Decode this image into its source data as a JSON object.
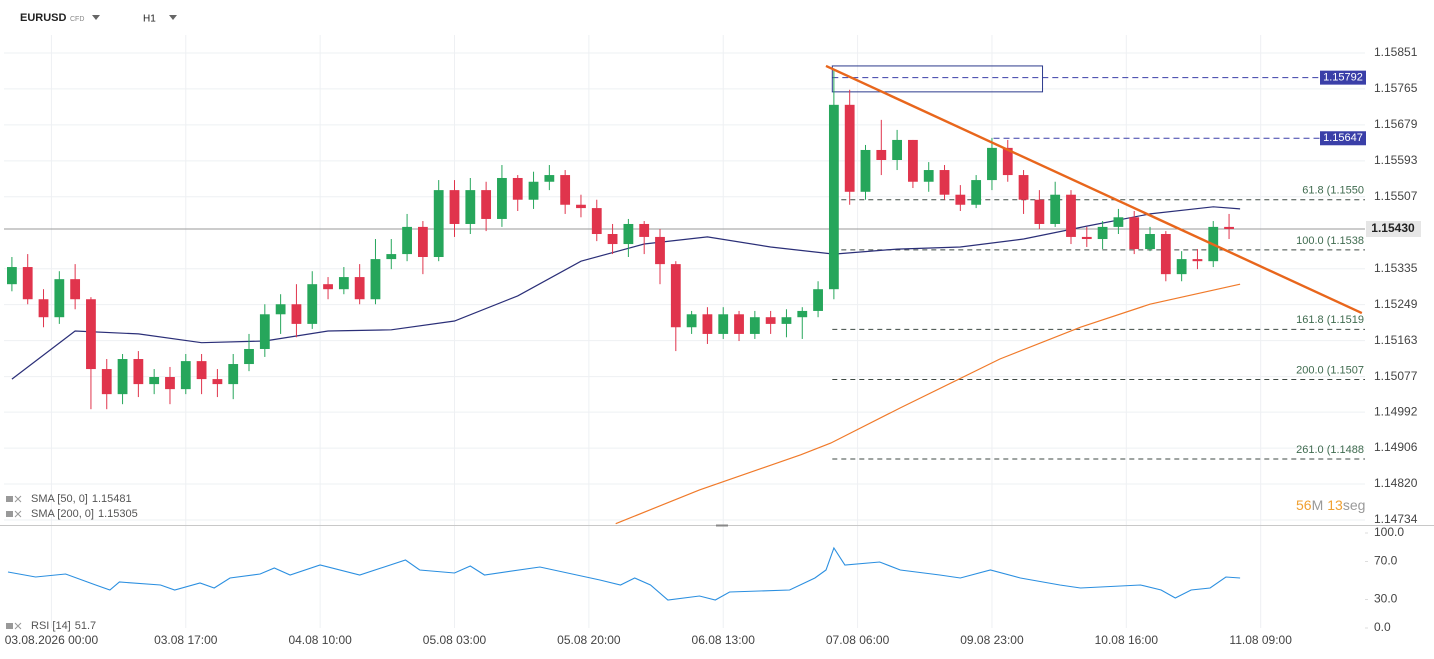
{
  "header": {
    "symbol": "EURUSD",
    "instrument_type": "CFD",
    "timeframe": "H1"
  },
  "countdown": {
    "minutes": 56,
    "minutes_unit": "M",
    "seconds": 13,
    "seconds_unit": "seg"
  },
  "chart_data": [
    {
      "type": "candlestick",
      "xlim": [
        -0.5,
        85.6
      ],
      "xticks": [
        {
          "value": 2.5,
          "label": "03.08.2026 00:00"
        },
        {
          "value": 11,
          "label": "03.08 17:00"
        },
        {
          "value": 19.5,
          "label": "04.08 10:00"
        },
        {
          "value": 28,
          "label": "05.08 03:00"
        },
        {
          "value": 36.5,
          "label": "05.08 20:00"
        },
        {
          "value": 45,
          "label": "06.08 13:00"
        },
        {
          "value": 53.5,
          "label": "07.08 06:00"
        },
        {
          "value": 62,
          "label": "09.08 23:00"
        },
        {
          "value": 70.5,
          "label": "10.08 16:00"
        },
        {
          "value": 79,
          "label": "11.08 09:00"
        }
      ],
      "ylim": [
        1.14722,
        1.15894
      ],
      "yticks": [
        1.15851,
        1.15765,
        1.15679,
        1.15593,
        1.15507,
        1.15335,
        1.15249,
        1.15163,
        1.15077,
        1.14992,
        1.14906,
        {
          "value": 1.1482,
          "label": "1.14820"
        },
        1.14734
      ],
      "grid": true,
      "up_color": "#26a65b",
      "down_color": "#e0344c",
      "open": [
        1.15298,
        1.15339,
        1.15262,
        1.15219,
        1.1531,
        1.15262,
        1.15095,
        1.15035,
        1.15119,
        1.15059,
        1.15076,
        1.15047,
        1.15114,
        1.15071,
        1.15059,
        1.15107,
        1.15143,
        1.15226,
        1.1525,
        1.15203,
        1.15298,
        1.15286,
        1.15315,
        1.15262,
        1.15358,
        1.1537,
        1.15435,
        1.15363,
        1.15523,
        1.15442,
        1.15523,
        1.15454,
        1.15552,
        1.155,
        1.15543,
        1.15559,
        1.15488,
        1.1548,
        1.15418,
        1.15394,
        1.15442,
        1.15411,
        1.15346,
        1.15195,
        1.15226,
        1.15179,
        1.15226,
        1.15179,
        1.15219,
        1.15203,
        1.15219,
        1.15234,
        1.15286,
        1.15727,
        1.15519,
        1.15619,
        1.15595,
        1.15643,
        1.15543,
        1.15571,
        1.15512,
        1.15488,
        1.15547,
        1.15624,
        1.15559,
        1.155,
        1.15442,
        1.15512,
        1.15411,
        1.15406,
        1.15435,
        1.15458,
        1.15382,
        1.15418,
        1.15322,
        1.15358,
        1.15353,
        1.15435
      ],
      "high": [
        1.15363,
        1.1537,
        1.15286,
        1.15329,
        1.15346,
        1.15267,
        1.15119,
        1.15131,
        1.15138,
        1.15095,
        1.151,
        1.15131,
        1.15131,
        1.15095,
        1.15131,
        1.15179,
        1.1525,
        1.15274,
        1.15298,
        1.15329,
        1.15315,
        1.15339,
        1.15346,
        1.15406,
        1.15406,
        1.15466,
        1.15449,
        1.15547,
        1.15547,
        1.15552,
        1.15543,
        1.15583,
        1.15559,
        1.15567,
        1.15583,
        1.15571,
        1.15512,
        1.155,
        1.15442,
        1.15454,
        1.15449,
        1.1543,
        1.15353,
        1.15234,
        1.15243,
        1.15243,
        1.15234,
        1.15234,
        1.15234,
        1.15238,
        1.15243,
        1.15305,
        1.15811,
        1.15763,
        1.15631,
        1.15691,
        1.15667,
        1.15643,
        1.1559,
        1.15583,
        1.15535,
        1.15559,
        1.15648,
        1.15643,
        1.15571,
        1.15523,
        1.15543,
        1.15523,
        1.15435,
        1.15449,
        1.15478,
        1.15473,
        1.15435,
        1.15425,
        1.15377,
        1.15382,
        1.15449,
        1.15466
      ],
      "low": [
        1.15281,
        1.1525,
        1.15195,
        1.15203,
        1.15238,
        1.14999,
        1.14999,
        1.15011,
        1.15028,
        1.15035,
        1.15011,
        1.15035,
        1.15035,
        1.15028,
        1.15023,
        1.1509,
        1.15124,
        1.15179,
        1.15171,
        1.15191,
        1.15262,
        1.15274,
        1.1525,
        1.1525,
        1.15334,
        1.15353,
        1.15322,
        1.15353,
        1.15411,
        1.15418,
        1.15425,
        1.15435,
        1.15473,
        1.15478,
        1.15523,
        1.15466,
        1.15458,
        1.15401,
        1.1537,
        1.15363,
        1.1537,
        1.15298,
        1.15138,
        1.15179,
        1.15155,
        1.15167,
        1.15162,
        1.15167,
        1.15179,
        1.15171,
        1.15167,
        1.15219,
        1.15262,
        1.15488,
        1.155,
        1.15559,
        1.15571,
        1.15528,
        1.15519,
        1.155,
        1.15473,
        1.1548,
        1.15523,
        1.15543,
        1.15466,
        1.1543,
        1.15435,
        1.15394,
        1.15387,
        1.15382,
        1.15418,
        1.1537,
        1.15377,
        1.15305,
        1.15305,
        1.15334,
        1.15339,
        1.15406
      ],
      "close": [
        1.15339,
        1.15262,
        1.15219,
        1.1531,
        1.15262,
        1.15095,
        1.15035,
        1.15119,
        1.15059,
        1.15076,
        1.15047,
        1.15114,
        1.15071,
        1.15059,
        1.15107,
        1.15143,
        1.15226,
        1.1525,
        1.15203,
        1.15298,
        1.15286,
        1.15315,
        1.15262,
        1.15358,
        1.1537,
        1.15435,
        1.15363,
        1.15523,
        1.15442,
        1.15523,
        1.15454,
        1.15552,
        1.155,
        1.15543,
        1.15559,
        1.15488,
        1.1548,
        1.15418,
        1.15394,
        1.15442,
        1.15411,
        1.15346,
        1.15195,
        1.15226,
        1.15179,
        1.15226,
        1.15179,
        1.15219,
        1.15203,
        1.15219,
        1.15234,
        1.15286,
        1.15727,
        1.15519,
        1.15619,
        1.15595,
        1.15643,
        1.15543,
        1.15571,
        1.15512,
        1.15488,
        1.15547,
        1.15624,
        1.15559,
        1.155,
        1.15442,
        1.15512,
        1.15411,
        1.15406,
        1.15435,
        1.15458,
        1.15382,
        1.15418,
        1.15322,
        1.15358,
        1.15353,
        1.15435,
        1.1543
      ],
      "lines": [
        {
          "name": "SMA [50, 0]",
          "legend_value": 1.15481,
          "color": "#2b2f78",
          "x": [
            0,
            4,
            8,
            12,
            16,
            20,
            24,
            28,
            32,
            36,
            40,
            44,
            48,
            52,
            56,
            60,
            64,
            68,
            72,
            76,
            77.7
          ],
          "values": [
            1.15071,
            1.15186,
            1.15179,
            1.15158,
            1.15162,
            1.15186,
            1.15189,
            1.1521,
            1.1527,
            1.15353,
            1.15394,
            1.15411,
            1.15387,
            1.1537,
            1.15382,
            1.15387,
            1.15406,
            1.15437,
            1.15466,
            1.15483,
            1.15478
          ]
        },
        {
          "name": "SMA [200, 0]",
          "legend_value": 1.15305,
          "color": "#f07a2a",
          "x": [
            38.2,
            43.5,
            49.9,
            51.8,
            56.2,
            62.5,
            67.6,
            72,
            77.7
          ],
          "values": [
            1.14725,
            1.14806,
            1.1489,
            1.14918,
            1.15002,
            1.15119,
            1.15195,
            1.1525,
            1.15298
          ]
        }
      ],
      "trendline": {
        "color": "#e8661c",
        "x": [
          51.5,
          85.4
        ],
        "values": [
          1.1582,
          1.15229
        ]
      },
      "box": {
        "color": "#2b3a8c",
        "x": [
          51.9,
          65.2
        ],
        "y": [
          1.1582,
          1.15758
        ]
      },
      "price_levels": [
        {
          "value": 1.15792,
          "x_start": 51.9,
          "color": "#3a3fa8"
        },
        {
          "value": 1.15647,
          "x_start": 62.1,
          "color": "#3a3fa8"
        }
      ],
      "fib_levels": [
        {
          "value": 1.155,
          "label": "61.8 (1.1550"
        },
        {
          "value": 1.1538,
          "label": "100.0 (1.1538"
        },
        {
          "value": 1.1519,
          "label": "161.8 (1.1519"
        },
        {
          "value": 1.1507,
          "label": "200.0 (1.1507"
        },
        {
          "value": 1.1488,
          "label": "261.0 (1.1488"
        }
      ],
      "fib_x_start": 51.9,
      "last_price": {
        "value": 1.1543,
        "label": "1.15430"
      }
    },
    {
      "type": "line",
      "name": "RSI [14]",
      "legend_value": 51.7,
      "color": "#2b8fe0",
      "ylim": [
        0,
        100
      ],
      "yticks": [
        {
          "value": 100,
          "label": "100.0"
        },
        {
          "value": 70,
          "label": "70.0"
        },
        {
          "value": 30,
          "label": "30.0"
        },
        {
          "value": 0,
          "label": "0.0"
        }
      ],
      "x": [
        -0.25,
        1.5,
        3.4,
        5.3,
        6.2,
        6.8,
        9.4,
        10.3,
        11.9,
        12.8,
        13.8,
        15.7,
        16.6,
        17.6,
        19.5,
        22,
        24.9,
        25.8,
        28,
        29,
        29.9,
        33.4,
        37.2,
        38.5,
        39.4,
        40.4,
        41.5,
        43.5,
        44.5,
        45.4,
        49.2,
        50.8,
        51.5,
        52,
        52.7,
        54.9,
        56.2,
        58.7,
        60,
        61.9,
        63.8,
        66.3,
        67.6,
        71.4,
        72.7,
        73.6,
        74.6,
        75.8,
        76.8,
        77.7
      ],
      "values": [
        58.9,
        53.7,
        56.8,
        45.3,
        40,
        48.4,
        45.3,
        40,
        47.4,
        42.1,
        52.6,
        56.8,
        63.2,
        55.8,
        66.3,
        55.8,
        71.6,
        61.1,
        57.9,
        65.3,
        55.8,
        64.2,
        50.5,
        45.3,
        52.6,
        45.3,
        29.5,
        33.7,
        29.5,
        37.9,
        40,
        52.6,
        61.1,
        84.2,
        66.3,
        69.5,
        61.1,
        55.8,
        52.6,
        61.1,
        52.6,
        45.3,
        42.1,
        45.3,
        40,
        31.6,
        40,
        42.1,
        53.7,
        52.6
      ]
    }
  ]
}
